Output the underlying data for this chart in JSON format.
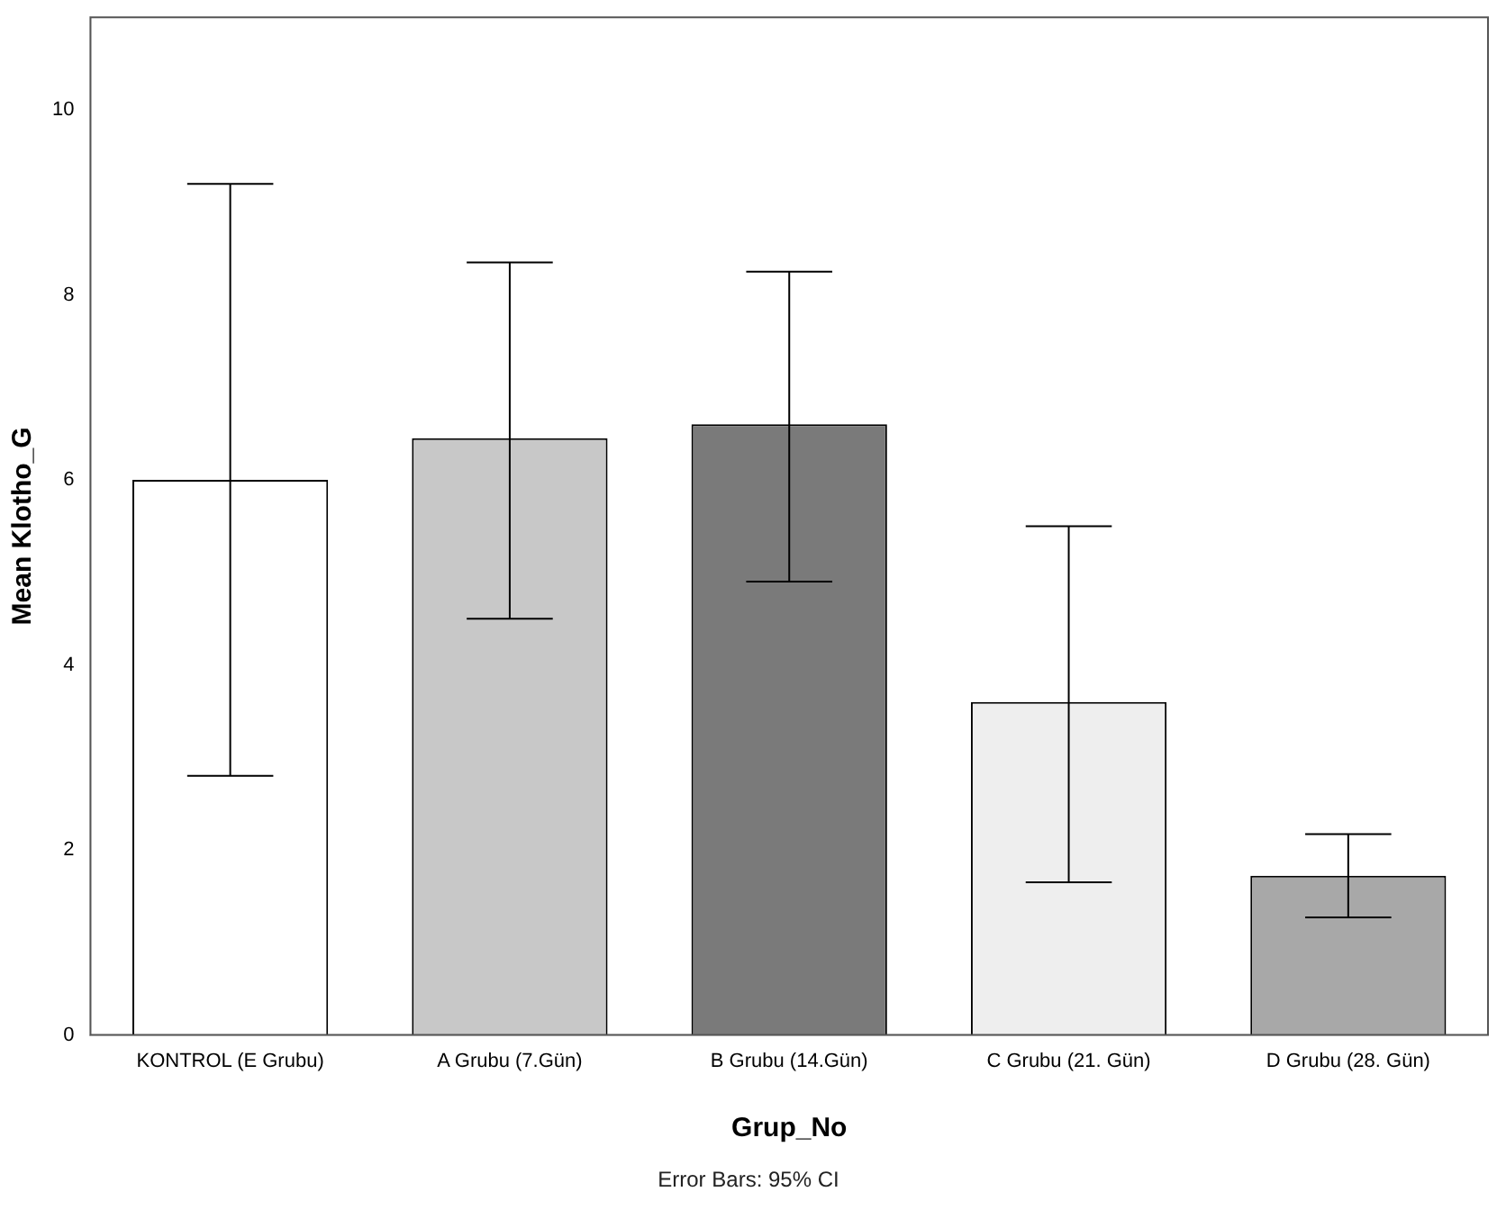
{
  "chart_data": {
    "type": "bar",
    "xlabel": "Grup_No",
    "ylabel": "Mean Klotho_G",
    "categories": [
      "KONTROL (E Grubu)",
      "A Grubu (7.Gün)",
      "B Grubu (14.Gün)",
      "C Grubu (21. Gün)",
      "D Grubu (28. Gün)"
    ],
    "values": [
      6.0,
      6.45,
      6.6,
      3.6,
      1.72
    ],
    "colors": [
      "#ffffff",
      "#c8c8c8",
      "#7a7a7a",
      "#eeeeee",
      "#a8a8a8"
    ],
    "errors": [
      [
        2.8,
        9.2
      ],
      [
        4.5,
        8.35
      ],
      [
        4.9,
        8.25
      ],
      [
        1.65,
        5.5
      ],
      [
        1.27,
        2.17
      ]
    ],
    "ylim": [
      0,
      11
    ],
    "yticks": [
      0,
      2,
      4,
      6,
      8,
      10
    ],
    "grid": false,
    "legend": false,
    "annotations": [
      "Error Bars: 95% CI"
    ]
  }
}
